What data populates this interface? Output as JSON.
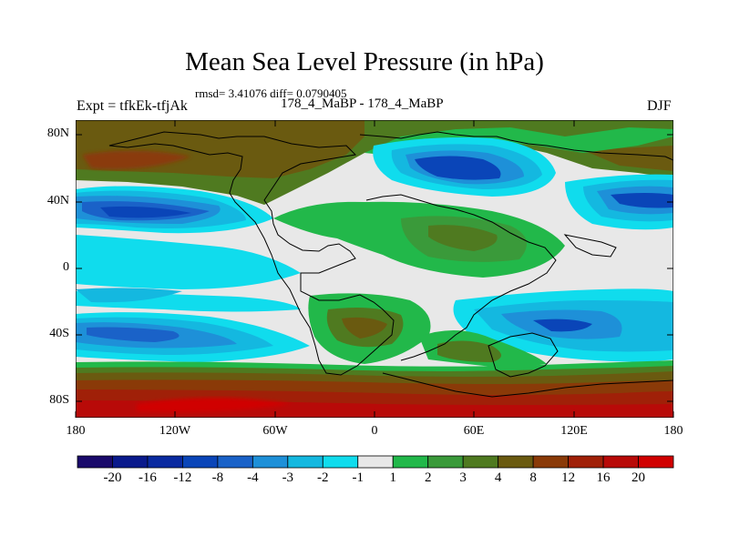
{
  "plot": {
    "title": "Mean Sea Level Pressure (in hPa)",
    "stats": "rmsd= 3.41076 diff= 0.0790405",
    "experiment": "Expt = tfkEk-tfjAk",
    "runs": "178_4_MaBP - 178_4_MaBP",
    "season": "DJF"
  },
  "axes": {
    "lat_labels": [
      "80N",
      "40N",
      "0",
      "40S",
      "80S"
    ],
    "lon_labels": [
      "180",
      "120W",
      "60W",
      "0",
      "60E",
      "120E",
      "180"
    ]
  },
  "colorbar": {
    "labels": [
      "-20",
      "-16",
      "-12",
      "-8",
      "-4",
      "-3",
      "-2",
      "-1",
      "1",
      "2",
      "3",
      "4",
      "8",
      "12",
      "16",
      "20"
    ],
    "colors": [
      "#1a0a6b",
      "#0a1a8c",
      "#0a2aa0",
      "#0a45b8",
      "#1a62c8",
      "#1e90d8",
      "#14b8e0",
      "#10dced",
      "#e8e8e8",
      "#22b84a",
      "#3a9a3a",
      "#4f7a20",
      "#6a5a10",
      "#8a3a08",
      "#a02008",
      "#b80a08",
      "#d00000"
    ]
  },
  "legend_colors": {
    "land_outline": "#000000",
    "neutral": "#e8e8e8"
  }
}
